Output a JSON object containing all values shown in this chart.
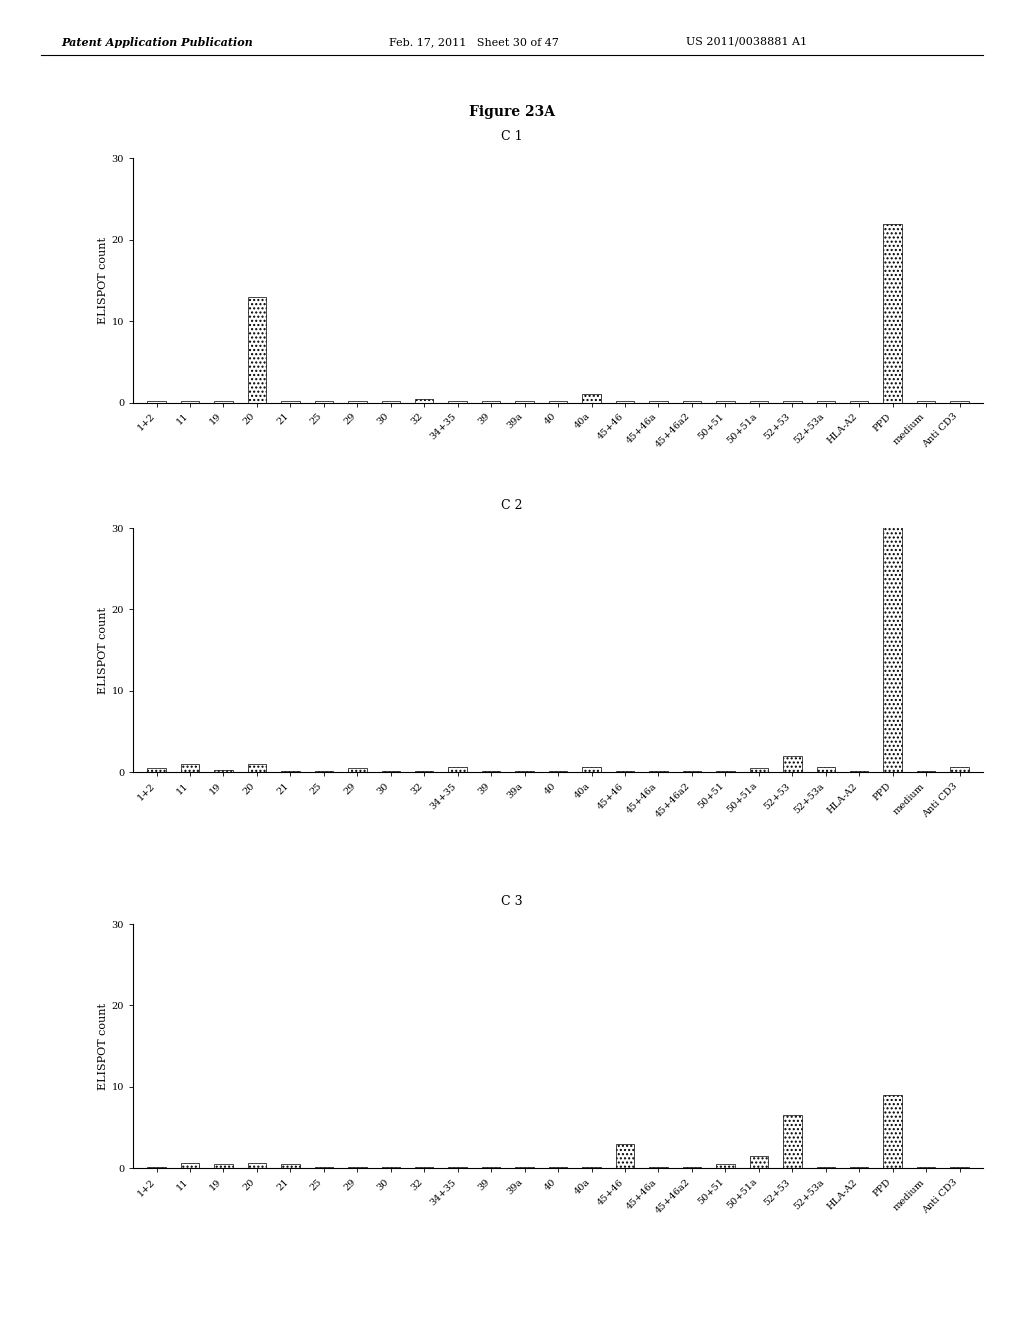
{
  "figure_title": "Figure 23A",
  "panels": [
    {
      "title": "C 1",
      "categories": [
        "1+2",
        "11",
        "19",
        "20",
        "21",
        "25",
        "29",
        "30",
        "32",
        "34+35",
        "39",
        "39a",
        "40",
        "40a",
        "45+46",
        "45+46a",
        "45+46a2",
        "50+51",
        "50+51a",
        "52+53",
        "52+53a",
        "HLA-A2",
        "PPD",
        "medium",
        "Anti CD3"
      ],
      "values": [
        0.2,
        0.2,
        0.2,
        13,
        0.2,
        0.2,
        0.2,
        0.2,
        0.4,
        0.2,
        0.2,
        0.2,
        0.2,
        1.0,
        0.2,
        0.2,
        0.2,
        0.2,
        0.2,
        0.2,
        0.2,
        0.2,
        22,
        0.2,
        0.2
      ]
    },
    {
      "title": "C 2",
      "categories": [
        "1+2",
        "11",
        "19",
        "20",
        "21",
        "25",
        "29",
        "30",
        "32",
        "34+35",
        "39",
        "39a",
        "40",
        "40a",
        "45+46",
        "45+46a",
        "45+46a2",
        "50+51",
        "50+51a",
        "52+53",
        "52+53a",
        "HLA-A2",
        "PPD",
        "medium",
        "Anti CD3"
      ],
      "values": [
        0.5,
        1.0,
        0.3,
        1.0,
        0.2,
        0.2,
        0.5,
        0.2,
        0.2,
        0.7,
        0.2,
        0.2,
        0.2,
        0.7,
        0.2,
        0.2,
        0.2,
        0.2,
        0.5,
        2.0,
        0.7,
        0.2,
        31,
        0.2,
        0.7
      ]
    },
    {
      "title": "C 3",
      "categories": [
        "1+2",
        "11",
        "19",
        "20",
        "21",
        "25",
        "29",
        "30",
        "32",
        "34+35",
        "39",
        "39a",
        "40",
        "40a",
        "45+46",
        "45+46a",
        "45+46a2",
        "50+51",
        "50+51a",
        "52+53",
        "52+53a",
        "HLA-A2",
        "PPD",
        "medium",
        "Anti CD3"
      ],
      "values": [
        0.2,
        0.7,
        0.5,
        0.7,
        0.5,
        0.2,
        0.2,
        0.2,
        0.2,
        0.2,
        0.2,
        0.2,
        0.2,
        0.2,
        3.0,
        0.2,
        0.2,
        0.5,
        1.5,
        6.5,
        0.2,
        0.2,
        9.0,
        0.2,
        0.2
      ]
    }
  ],
  "ylabel": "ELISPOT count",
  "ylim": [
    0,
    30
  ],
  "yticks": [
    0,
    10,
    20,
    30
  ],
  "background_color": "#ffffff",
  "figure_title_fontsize": 10,
  "panel_title_fontsize": 9,
  "axis_label_fontsize": 8,
  "tick_fontsize": 7,
  "header_fontsize": 8,
  "header_left": "Patent Application Publication",
  "header_mid": "Feb. 17, 2011   Sheet 30 of 47",
  "header_right": "US 2011/0038881 A1"
}
